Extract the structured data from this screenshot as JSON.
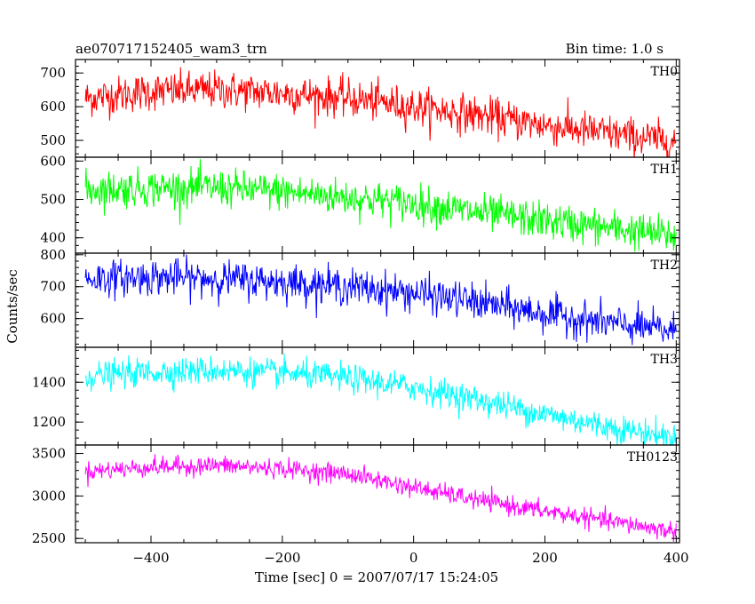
{
  "figure": {
    "title_left": "ae070717152405_wam3_trn",
    "title_right": "Bin time: 1.0 s",
    "ylabel": "Counts/sec",
    "xlabel": "Time [sec] 0 = 2007/07/17 15:24:05"
  },
  "chart_data": {
    "type": "line",
    "xlim": [
      -515,
      405
    ],
    "x_ticks": [
      -400,
      -200,
      0,
      200,
      400
    ],
    "x_tick_labels": [
      "−400",
      "−200",
      "0",
      "200",
      "400"
    ],
    "x_range": [
      -500,
      400
    ],
    "bin_time": 1.0,
    "panels": [
      {
        "name": "TH0",
        "color": "#ff0000",
        "ylim": [
          450,
          740
        ],
        "yticks": [
          500,
          600,
          700
        ],
        "trend": [
          [
            -500,
            625
          ],
          [
            -400,
            645
          ],
          [
            -300,
            650
          ],
          [
            -200,
            640
          ],
          [
            -100,
            625
          ],
          [
            0,
            600
          ],
          [
            100,
            575
          ],
          [
            200,
            545
          ],
          [
            300,
            520
          ],
          [
            400,
            495
          ]
        ],
        "noise_sd": 28
      },
      {
        "name": "TH1",
        "color": "#00ff00",
        "ylim": [
          360,
          610
        ],
        "yticks": [
          400,
          500,
          600
        ],
        "trend": [
          [
            -500,
            525
          ],
          [
            -400,
            530
          ],
          [
            -300,
            530
          ],
          [
            -200,
            520
          ],
          [
            -100,
            505
          ],
          [
            0,
            490
          ],
          [
            100,
            465
          ],
          [
            200,
            445
          ],
          [
            300,
            425
          ],
          [
            400,
            405
          ]
        ],
        "noise_sd": 24
      },
      {
        "name": "TH2",
        "color": "#0000ff",
        "ylim": [
          510,
          805
        ],
        "yticks": [
          600,
          700,
          800
        ],
        "trend": [
          [
            -500,
            725
          ],
          [
            -400,
            730
          ],
          [
            -300,
            725
          ],
          [
            -200,
            715
          ],
          [
            -100,
            700
          ],
          [
            0,
            680
          ],
          [
            100,
            650
          ],
          [
            200,
            615
          ],
          [
            300,
            585
          ],
          [
            400,
            560
          ]
        ],
        "noise_sd": 28
      },
      {
        "name": "TH3",
        "color": "#00ffff",
        "ylim": [
          1085,
          1575
        ],
        "yticks": [
          1200,
          1400
        ],
        "trend": [
          [
            -500,
            1430
          ],
          [
            -400,
            1450
          ],
          [
            -300,
            1460
          ],
          [
            -200,
            1445
          ],
          [
            -100,
            1420
          ],
          [
            0,
            1375
          ],
          [
            100,
            1310
          ],
          [
            200,
            1240
          ],
          [
            300,
            1175
          ],
          [
            400,
            1120
          ]
        ],
        "noise_sd": 35
      },
      {
        "name": "TH0123",
        "color": "#ff00ff",
        "ylim": [
          2450,
          3600
        ],
        "yticks": [
          2500,
          3000,
          3500
        ],
        "trend": [
          [
            -500,
            3290
          ],
          [
            -400,
            3340
          ],
          [
            -300,
            3360
          ],
          [
            -200,
            3320
          ],
          [
            -100,
            3260
          ],
          [
            0,
            3100
          ],
          [
            100,
            2950
          ],
          [
            200,
            2820
          ],
          [
            300,
            2700
          ],
          [
            400,
            2580
          ]
        ],
        "noise_sd": 55
      }
    ]
  }
}
